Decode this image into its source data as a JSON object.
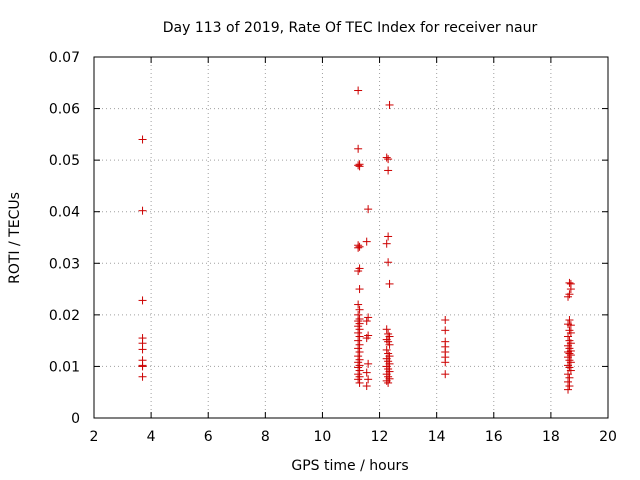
{
  "chart_data": {
    "type": "scatter",
    "title": "Day 113 of 2019, Rate Of TEC Index for receiver naur",
    "xlabel": "GPS time / hours",
    "ylabel": "ROTI / TECUs",
    "xlim": [
      2,
      20
    ],
    "ylim": [
      0,
      0.07
    ],
    "xticks": [
      2,
      4,
      6,
      8,
      10,
      12,
      14,
      16,
      18,
      20
    ],
    "yticks": [
      0,
      0.01,
      0.02,
      0.03,
      0.04,
      0.05,
      0.06,
      0.07
    ],
    "xtick_labels": [
      "2",
      "4",
      "6",
      "8",
      "10",
      "12",
      "14",
      "16",
      "18",
      "20"
    ],
    "ytick_labels": [
      "0",
      "0.01",
      "0.02",
      "0.03",
      "0.04",
      "0.05",
      "0.06",
      "0.07"
    ],
    "grid": true,
    "marker": "+",
    "color": "#cc0000",
    "series": [
      {
        "points": [
          [
            3.7,
            0.054
          ],
          [
            3.7,
            0.0402
          ],
          [
            3.7,
            0.0228
          ],
          [
            3.7,
            0.0155
          ],
          [
            3.7,
            0.0145
          ],
          [
            3.7,
            0.0133
          ],
          [
            3.7,
            0.0112
          ],
          [
            3.7,
            0.0102
          ],
          [
            3.7,
            0.01
          ],
          [
            3.7,
            0.008
          ],
          [
            11.25,
            0.0635
          ],
          [
            11.25,
            0.0522
          ],
          [
            11.3,
            0.0492
          ],
          [
            11.25,
            0.049
          ],
          [
            11.3,
            0.0488
          ],
          [
            11.25,
            0.0335
          ],
          [
            11.3,
            0.0332
          ],
          [
            11.25,
            0.033
          ],
          [
            11.3,
            0.029
          ],
          [
            11.25,
            0.0285
          ],
          [
            11.3,
            0.025
          ],
          [
            11.25,
            0.022
          ],
          [
            11.3,
            0.021
          ],
          [
            11.25,
            0.02
          ],
          [
            11.3,
            0.0192
          ],
          [
            11.25,
            0.0188
          ],
          [
            11.3,
            0.0183
          ],
          [
            11.25,
            0.0178
          ],
          [
            11.3,
            0.0172
          ],
          [
            11.25,
            0.0165
          ],
          [
            11.3,
            0.0158
          ],
          [
            11.25,
            0.015
          ],
          [
            11.3,
            0.0142
          ],
          [
            11.25,
            0.0135
          ],
          [
            11.3,
            0.0128
          ],
          [
            11.25,
            0.012
          ],
          [
            11.3,
            0.0113
          ],
          [
            11.25,
            0.0108
          ],
          [
            11.3,
            0.0102
          ],
          [
            11.25,
            0.0098
          ],
          [
            11.3,
            0.0092
          ],
          [
            11.25,
            0.0085
          ],
          [
            11.3,
            0.008
          ],
          [
            11.25,
            0.0075
          ],
          [
            11.3,
            0.0068
          ],
          [
            11.6,
            0.0405
          ],
          [
            11.55,
            0.0342
          ],
          [
            11.6,
            0.0195
          ],
          [
            11.55,
            0.0188
          ],
          [
            11.6,
            0.016
          ],
          [
            11.55,
            0.0155
          ],
          [
            11.6,
            0.0105
          ],
          [
            11.55,
            0.0088
          ],
          [
            11.6,
            0.0075
          ],
          [
            11.55,
            0.0062
          ],
          [
            12.35,
            0.0607
          ],
          [
            12.25,
            0.0505
          ],
          [
            12.3,
            0.0502
          ],
          [
            12.3,
            0.048
          ],
          [
            12.3,
            0.0352
          ],
          [
            12.25,
            0.0338
          ],
          [
            12.3,
            0.0302
          ],
          [
            12.35,
            0.026
          ],
          [
            12.25,
            0.0172
          ],
          [
            12.3,
            0.0163
          ],
          [
            12.35,
            0.0158
          ],
          [
            12.25,
            0.0152
          ],
          [
            12.3,
            0.0148
          ],
          [
            12.35,
            0.0142
          ],
          [
            12.25,
            0.0132
          ],
          [
            12.3,
            0.0125
          ],
          [
            12.35,
            0.012
          ],
          [
            12.25,
            0.0115
          ],
          [
            12.3,
            0.011
          ],
          [
            12.35,
            0.0105
          ],
          [
            12.25,
            0.01
          ],
          [
            12.3,
            0.0095
          ],
          [
            12.35,
            0.009
          ],
          [
            12.25,
            0.0085
          ],
          [
            12.3,
            0.008
          ],
          [
            12.35,
            0.0076
          ],
          [
            12.25,
            0.0072
          ],
          [
            12.3,
            0.0068
          ],
          [
            14.3,
            0.019
          ],
          [
            14.3,
            0.017
          ],
          [
            14.3,
            0.0148
          ],
          [
            14.3,
            0.0138
          ],
          [
            14.3,
            0.0128
          ],
          [
            14.3,
            0.0118
          ],
          [
            14.3,
            0.0108
          ],
          [
            14.3,
            0.0085
          ],
          [
            18.65,
            0.0262
          ],
          [
            18.7,
            0.026
          ],
          [
            18.7,
            0.025
          ],
          [
            18.65,
            0.024
          ],
          [
            18.6,
            0.0235
          ],
          [
            18.65,
            0.019
          ],
          [
            18.6,
            0.0182
          ],
          [
            18.7,
            0.018
          ],
          [
            18.65,
            0.017
          ],
          [
            18.7,
            0.0165
          ],
          [
            18.6,
            0.0158
          ],
          [
            18.65,
            0.015
          ],
          [
            18.7,
            0.0145
          ],
          [
            18.6,
            0.014
          ],
          [
            18.65,
            0.0135
          ],
          [
            18.7,
            0.013
          ],
          [
            18.6,
            0.0128
          ],
          [
            18.65,
            0.0125
          ],
          [
            18.7,
            0.0122
          ],
          [
            18.6,
            0.0118
          ],
          [
            18.65,
            0.0112
          ],
          [
            18.7,
            0.0108
          ],
          [
            18.6,
            0.0102
          ],
          [
            18.65,
            0.0098
          ],
          [
            18.7,
            0.0092
          ],
          [
            18.6,
            0.0085
          ],
          [
            18.65,
            0.0078
          ],
          [
            18.6,
            0.007
          ],
          [
            18.65,
            0.0062
          ],
          [
            18.6,
            0.0055
          ]
        ]
      }
    ]
  }
}
